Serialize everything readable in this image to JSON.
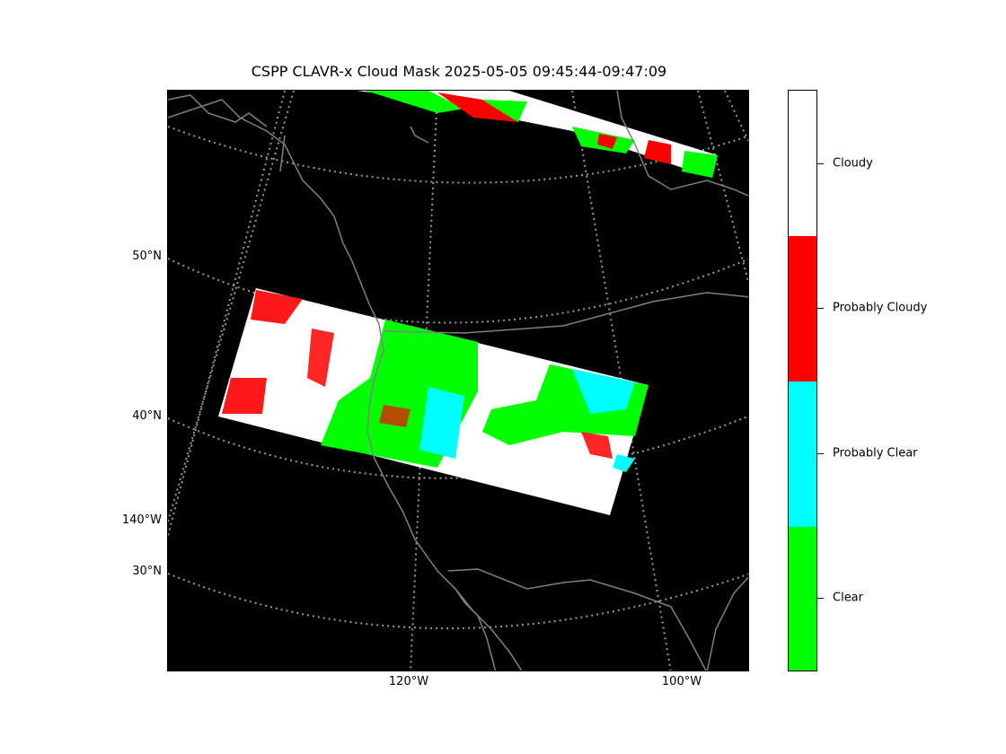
{
  "title": "CSPP CLAVR-x Cloud Mask 2025-05-05 09:45:44-09:47:09",
  "lat_labels": [
    "50°N",
    "40°N",
    "30°N"
  ],
  "lon_left_label": "140°W",
  "lon_labels": [
    "120°W",
    "100°W"
  ],
  "colorbar": {
    "categories": [
      {
        "label": "Cloudy",
        "color": "#ffffff"
      },
      {
        "label": "Probably Cloudy",
        "color": "#ff0000"
      },
      {
        "label": "Probably Clear",
        "color": "#00ffff"
      },
      {
        "label": "Clear",
        "color": "#00ff00"
      }
    ]
  },
  "colors": {
    "background": "#000000",
    "coastline": "#808080",
    "graticule": "#9a9a9a"
  }
}
